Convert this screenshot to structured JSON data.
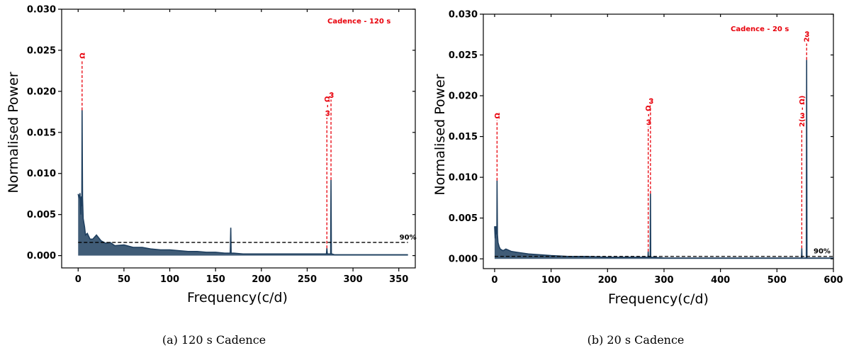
{
  "chart_data": [
    {
      "type": "line",
      "caption": "(a)  120 s Cadence",
      "xlabel": "Frequency(c/d)",
      "ylabel": "Normalised Power",
      "xlim": [
        -18,
        368
      ],
      "ylim": [
        -0.0015,
        0.03
      ],
      "x_ticks": [
        0,
        50,
        100,
        150,
        200,
        250,
        300,
        350
      ],
      "y_ticks": [
        "0.000",
        "0.005",
        "0.010",
        "0.015",
        "0.020",
        "0.025",
        "0.030"
      ],
      "y_tick_values": [
        0,
        0.005,
        0.01,
        0.015,
        0.02,
        0.025,
        0.03
      ],
      "annotation": "Cadence - 120 s",
      "threshold": {
        "label": "90%",
        "value": 0.0016,
        "x_start": 0,
        "x_end": 360
      },
      "peaks": [
        {
          "label": "Ω",
          "x": 4.3,
          "y": 0.0177,
          "line_top": 0.0238
        },
        {
          "label": "ω - Ω",
          "x": 271.5,
          "y": 0.0009,
          "line_top": 0.0168
        },
        {
          "label": "ω",
          "x": 276.0,
          "y": 0.0092,
          "line_top": 0.019
        }
      ],
      "series": [
        {
          "x": [
            0,
            1,
            2,
            3,
            3.5,
            4,
            4.3,
            4.8,
            5.5,
            7,
            8,
            10,
            13,
            16,
            20,
            25,
            30,
            35,
            40,
            50,
            60,
            70,
            80,
            90,
            100,
            110,
            120,
            130,
            140,
            150,
            160,
            166,
            166.6,
            167,
            168,
            170,
            180,
            200,
            220,
            240,
            260,
            270,
            271,
            271.5,
            272,
            273,
            275,
            275.6,
            276,
            276.4,
            277,
            280,
            300,
            320,
            340,
            360
          ],
          "y": [
            0.0075,
            0.007,
            0.0076,
            0.005,
            0.0072,
            0.006,
            0.0177,
            0.007,
            0.0045,
            0.0035,
            0.0025,
            0.0027,
            0.002,
            0.002,
            0.0025,
            0.0018,
            0.0015,
            0.0016,
            0.0012,
            0.0013,
            0.001,
            0.001,
            0.0008,
            0.0007,
            0.0007,
            0.0006,
            0.0005,
            0.0005,
            0.0004,
            0.0004,
            0.0003,
            0.0003,
            0.0034,
            0.0003,
            0.0003,
            0.0003,
            0.0002,
            0.0002,
            0.0002,
            0.0002,
            0.0002,
            0.0002,
            0.0002,
            0.0009,
            0.0002,
            0.0002,
            0.0002,
            0.0002,
            0.0092,
            0.0002,
            0.0002,
            0.0001,
            0.0001,
            0.0001,
            0.0001,
            0.0001
          ]
        }
      ]
    },
    {
      "type": "line",
      "caption": "(b)  20 s Cadence",
      "xlabel": "Frequency(c/d)",
      "ylabel": "Normalised Power",
      "xlim": [
        -20,
        600
      ],
      "ylim": [
        -0.0012,
        0.03
      ],
      "x_ticks": [
        0,
        100,
        200,
        300,
        400,
        500,
        600
      ],
      "y_ticks": [
        "0.000",
        "0.005",
        "0.010",
        "0.015",
        "0.020",
        "0.025",
        "0.030"
      ],
      "y_tick_values": [
        0,
        0.005,
        0.01,
        0.015,
        0.02,
        0.025,
        0.03
      ],
      "annotation": "Cadence - 20 s",
      "threshold": {
        "label": "90%",
        "value": 0.0003,
        "x_start": 0,
        "x_end": 600
      },
      "peaks": [
        {
          "label": "Ω",
          "x": 4.3,
          "y": 0.0096,
          "line_top": 0.017
        },
        {
          "label": "ω - Ω",
          "x": 272,
          "y": 0.0009,
          "line_top": 0.0162
        },
        {
          "label": "ω",
          "x": 276,
          "y": 0.008,
          "line_top": 0.0188
        },
        {
          "label": "2(ω - Ω)",
          "x": 544,
          "y": 0.0013,
          "line_top": 0.016
        },
        {
          "label": "2ω",
          "x": 552.6,
          "y": 0.0244,
          "line_top": 0.0264
        }
      ],
      "series": [
        {
          "x": [
            0,
            1,
            2,
            3,
            4,
            4.3,
            5,
            6,
            8,
            10,
            15,
            20,
            30,
            40,
            50,
            60,
            80,
            100,
            130,
            160,
            200,
            240,
            270,
            271.5,
            272,
            272.5,
            275,
            275.5,
            276,
            276.5,
            278,
            300,
            350,
            400,
            450,
            500,
            540,
            543.5,
            544,
            544.5,
            552,
            552.6,
            553.2,
            560,
            600
          ],
          "y": [
            0.004,
            0.0025,
            0.004,
            0.003,
            0.0035,
            0.0096,
            0.003,
            0.002,
            0.0015,
            0.0012,
            0.001,
            0.0012,
            0.0009,
            0.0008,
            0.0007,
            0.0006,
            0.0005,
            0.0004,
            0.0003,
            0.0003,
            0.0002,
            0.0002,
            0.0002,
            0.0002,
            0.0009,
            0.0002,
            0.0002,
            0.0002,
            0.008,
            0.0002,
            0.0002,
            0.0001,
            0.0001,
            0.0001,
            0.0001,
            0.0001,
            0.0001,
            0.0001,
            0.0013,
            0.0001,
            0.0001,
            0.0244,
            0.0001,
            0.0001,
            0.0001
          ]
        }
      ]
    }
  ]
}
